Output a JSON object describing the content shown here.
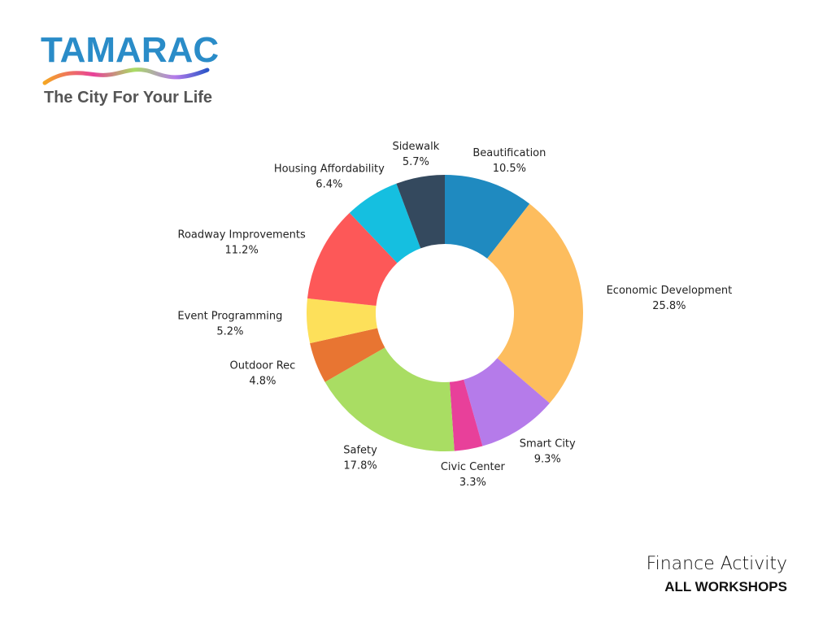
{
  "logo": {
    "name": "TAMARAC",
    "tagline": "The City For Your Life"
  },
  "chart_data": {
    "type": "donut",
    "categories": [
      "Beautification",
      "Economic Development",
      "Smart City",
      "Civic Center",
      "Safety",
      "Outdoor Rec",
      "Event Programming",
      "Roadway Improvements",
      "Housing Affordability",
      "Sidewalk"
    ],
    "values": [
      10.5,
      25.8,
      9.3,
      3.3,
      17.8,
      4.8,
      5.2,
      11.2,
      6.4,
      5.7
    ],
    "value_labels": [
      "10.5%",
      "25.8%",
      "9.3%",
      "3.3%",
      "17.8%",
      "4.8%",
      "5.2%",
      "11.2%",
      "6.4%",
      "5.7%"
    ],
    "colors": [
      "#1f8ac0",
      "#fdbd5e",
      "#b57bea",
      "#e8409a",
      "#a9dd63",
      "#e87532",
      "#fde05a",
      "#fd5858",
      "#15bfe0",
      "#34495e"
    ]
  },
  "footer": {
    "title": "Finance Activity",
    "subtitle": "ALL WORKSHOPS"
  }
}
